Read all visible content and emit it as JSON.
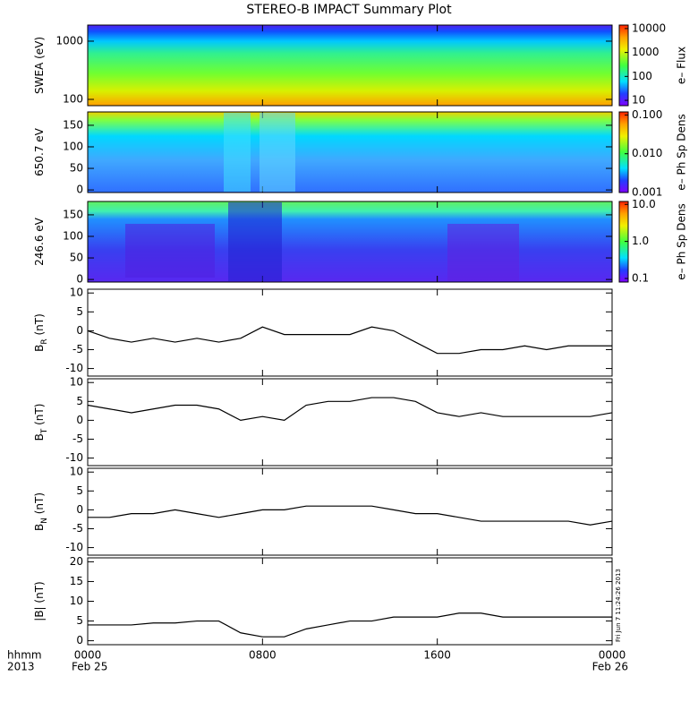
{
  "chart_data": [
    {
      "type": "heatmap",
      "title": "STEREO-B IMPACT Summary Plot",
      "ylabel": [
        "SWEA (eV)"
      ],
      "ylog": true,
      "ylim": [
        78,
        1890
      ],
      "yticks": [
        100,
        1000
      ],
      "colorbar": {
        "label": "e– Flux",
        "zlim": [
          6,
          14000
        ],
        "zticks": [
          10,
          100,
          1000,
          10000
        ]
      }
    },
    {
      "type": "heatmap",
      "ylabel": [
        "650.7 eV"
      ],
      "ylim": [
        -6,
        181
      ],
      "yticks": [
        0,
        50,
        100,
        150
      ],
      "colorbar": {
        "label": "e– Ph Sp Dens",
        "zlim": [
          0.001,
          0.12
        ],
        "zticks": [
          {
            "value": 0.1,
            "label": "0.100"
          },
          {
            "value": 0.01,
            "label": "0.010"
          },
          {
            "value": 0.001,
            "label": "0.001"
          }
        ]
      }
    },
    {
      "type": "heatmap",
      "ylabel": [
        "246.6 eV"
      ],
      "ylim": [
        -6,
        181
      ],
      "yticks": [
        0,
        50,
        100,
        150
      ],
      "colorbar": {
        "label": "e– Ph Sp Dens",
        "zlim": [
          0.08,
          12
        ],
        "zticks": [
          {
            "value": 10,
            "label": "10.0"
          },
          {
            "value": 1,
            "label": "1.0"
          },
          0.1
        ]
      }
    },
    {
      "type": "line",
      "ylabel": [
        "B",
        "R",
        " (nT)"
      ],
      "ylim": [
        -12,
        11
      ],
      "yticks": [
        -10,
        -5,
        0,
        5,
        10
      ],
      "color": "#000000",
      "x": [
        0,
        1,
        2,
        3,
        4,
        5,
        6,
        7,
        8,
        9,
        10,
        11,
        12,
        13,
        14,
        15,
        16,
        17,
        18,
        19,
        20,
        21,
        22,
        23,
        24
      ],
      "values": [
        0,
        -2,
        -3,
        -2,
        -3,
        -2,
        -3,
        -2,
        1,
        -1,
        -1,
        -1,
        -1,
        1,
        0,
        -3,
        -6,
        -6,
        -5,
        -5,
        -4,
        -5,
        -4,
        -4,
        -4
      ]
    },
    {
      "type": "line",
      "ylabel": [
        "B",
        "T",
        " (nT)"
      ],
      "ylim": [
        -12,
        11
      ],
      "yticks": [
        -10,
        -5,
        0,
        5,
        10
      ],
      "color": "#000000",
      "x": [
        0,
        1,
        2,
        3,
        4,
        5,
        6,
        7,
        8,
        9,
        10,
        11,
        12,
        13,
        14,
        15,
        16,
        17,
        18,
        19,
        20,
        21,
        22,
        23,
        24
      ],
      "values": [
        4,
        3,
        2,
        3,
        4,
        4,
        3,
        0,
        1,
        0,
        4,
        5,
        5,
        6,
        6,
        5,
        2,
        1,
        2,
        1,
        1,
        1,
        1,
        1,
        2
      ]
    },
    {
      "type": "line",
      "ylabel": [
        "B",
        "N",
        " (nT)"
      ],
      "ylim": [
        -12,
        11
      ],
      "yticks": [
        -10,
        -5,
        0,
        5,
        10
      ],
      "color": "#000000",
      "x": [
        0,
        1,
        2,
        3,
        4,
        5,
        6,
        7,
        8,
        9,
        10,
        11,
        12,
        13,
        14,
        15,
        16,
        17,
        18,
        19,
        20,
        21,
        22,
        23,
        24
      ],
      "values": [
        -2,
        -2,
        -1,
        -1,
        0,
        -1,
        -2,
        -1,
        0,
        0,
        1,
        1,
        1,
        1,
        0,
        -1,
        -1,
        -2,
        -3,
        -3,
        -3,
        -3,
        -3,
        -4,
        -3
      ]
    },
    {
      "type": "line",
      "ylabel": [
        "|B| (nT)"
      ],
      "ylim": [
        -1,
        21
      ],
      "yticks": [
        0,
        5,
        10,
        15,
        20
      ],
      "color": "#000000",
      "x": [
        0,
        1,
        2,
        3,
        4,
        5,
        6,
        7,
        8,
        9,
        10,
        11,
        12,
        13,
        14,
        15,
        16,
        17,
        18,
        19,
        20,
        21,
        22,
        23,
        24
      ],
      "values": [
        4,
        4,
        4,
        4.5,
        4.5,
        5,
        5,
        2,
        1,
        1,
        3,
        4,
        5,
        5,
        6,
        6,
        6,
        7,
        7,
        6,
        6,
        6,
        6,
        6,
        6
      ],
      "xlim": [
        0,
        24
      ],
      "xticks": [
        {
          "value": 0,
          "label": "0000"
        },
        {
          "value": 8,
          "label": "0800"
        },
        {
          "value": 16,
          "label": "1600"
        },
        {
          "value": 24,
          "label": "0000"
        }
      ],
      "xtitle": [
        "hhmm",
        "2013"
      ],
      "start_date": "Feb 25",
      "end_date": "Feb 26",
      "stamp": "Fri Jun  7 11:24:26 2013"
    }
  ]
}
